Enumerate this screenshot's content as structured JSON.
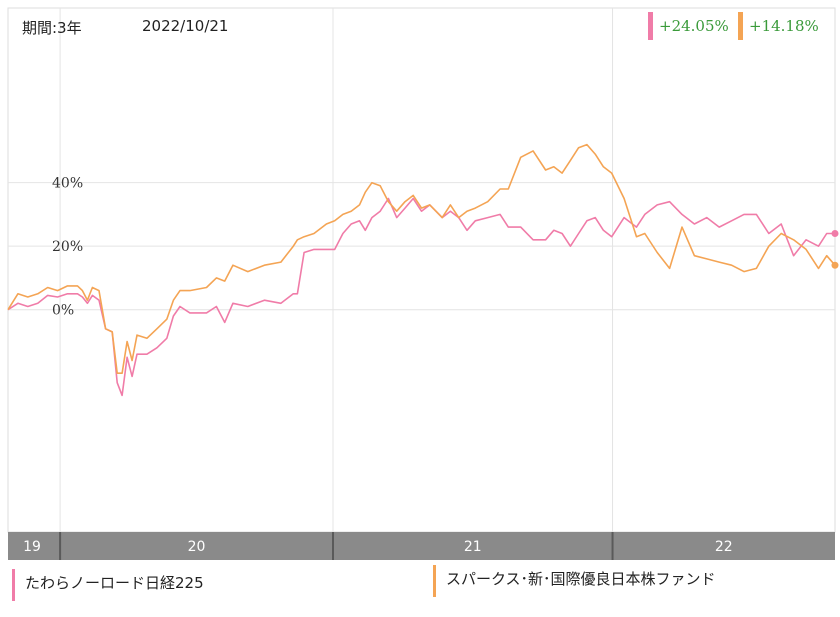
{
  "header": {
    "period_label": "期間:3年",
    "date": "2022/10/21"
  },
  "badges": [
    {
      "text": "+24.05%",
      "color": "#f07ca8"
    },
    {
      "text": "+14.18%",
      "color": "#f4a454"
    }
  ],
  "legend": [
    {
      "label": "たわらノーロード日経225",
      "color": "#f07ca8"
    },
    {
      "label": "スパークス･新･国際優良日本株ファンド",
      "color": "#f4a454"
    }
  ],
  "chart_data": {
    "type": "line",
    "ylim": [
      -0.7,
      0.95
    ],
    "y_ticks": [
      {
        "value": 0.4,
        "label": "40%"
      },
      {
        "value": 0.2,
        "label": "20%"
      },
      {
        "value": 0.0,
        "label": "0%"
      }
    ],
    "x_bands": [
      {
        "label": "19",
        "from": 0.0,
        "to": 0.063
      },
      {
        "label": "20",
        "from": 0.063,
        "to": 0.393
      },
      {
        "label": "21",
        "from": 0.393,
        "to": 0.731
      },
      {
        "label": "22",
        "from": 0.731,
        "to": 1.0
      }
    ],
    "series": [
      {
        "name": "たわらノーロード日経225",
        "color": "#f07ca8",
        "points": [
          [
            0,
            0
          ],
          [
            0.012,
            0.02
          ],
          [
            0.024,
            0.01
          ],
          [
            0.036,
            0.02
          ],
          [
            0.048,
            0.045
          ],
          [
            0.06,
            0.04
          ],
          [
            0.072,
            0.05
          ],
          [
            0.084,
            0.05
          ],
          [
            0.09,
            0.04
          ],
          [
            0.096,
            0.02
          ],
          [
            0.102,
            0.045
          ],
          [
            0.11,
            0.03
          ],
          [
            0.118,
            -0.06
          ],
          [
            0.126,
            -0.07
          ],
          [
            0.132,
            -0.23
          ],
          [
            0.138,
            -0.27
          ],
          [
            0.144,
            -0.15
          ],
          [
            0.15,
            -0.21
          ],
          [
            0.156,
            -0.14
          ],
          [
            0.168,
            -0.14
          ],
          [
            0.18,
            -0.12
          ],
          [
            0.192,
            -0.09
          ],
          [
            0.2,
            -0.02
          ],
          [
            0.208,
            0.01
          ],
          [
            0.22,
            -0.01
          ],
          [
            0.24,
            -0.01
          ],
          [
            0.252,
            0.01
          ],
          [
            0.262,
            -0.04
          ],
          [
            0.272,
            0.02
          ],
          [
            0.29,
            0.01
          ],
          [
            0.31,
            0.03
          ],
          [
            0.33,
            0.02
          ],
          [
            0.345,
            0.05
          ],
          [
            0.35,
            0.05
          ],
          [
            0.358,
            0.18
          ],
          [
            0.37,
            0.19
          ],
          [
            0.385,
            0.19
          ],
          [
            0.395,
            0.19
          ],
          [
            0.405,
            0.24
          ],
          [
            0.415,
            0.27
          ],
          [
            0.425,
            0.28
          ],
          [
            0.432,
            0.25
          ],
          [
            0.44,
            0.29
          ],
          [
            0.45,
            0.31
          ],
          [
            0.46,
            0.35
          ],
          [
            0.47,
            0.29
          ],
          [
            0.48,
            0.32
          ],
          [
            0.49,
            0.35
          ],
          [
            0.5,
            0.31
          ],
          [
            0.51,
            0.33
          ],
          [
            0.525,
            0.29
          ],
          [
            0.535,
            0.31
          ],
          [
            0.545,
            0.29
          ],
          [
            0.555,
            0.25
          ],
          [
            0.565,
            0.28
          ],
          [
            0.58,
            0.29
          ],
          [
            0.595,
            0.3
          ],
          [
            0.605,
            0.26
          ],
          [
            0.62,
            0.26
          ],
          [
            0.635,
            0.22
          ],
          [
            0.65,
            0.22
          ],
          [
            0.66,
            0.25
          ],
          [
            0.67,
            0.24
          ],
          [
            0.68,
            0.2
          ],
          [
            0.69,
            0.24
          ],
          [
            0.7,
            0.28
          ],
          [
            0.71,
            0.29
          ],
          [
            0.72,
            0.25
          ],
          [
            0.73,
            0.23
          ],
          [
            0.745,
            0.29
          ],
          [
            0.76,
            0.26
          ],
          [
            0.77,
            0.3
          ],
          [
            0.785,
            0.33
          ],
          [
            0.8,
            0.34
          ],
          [
            0.815,
            0.3
          ],
          [
            0.83,
            0.27
          ],
          [
            0.845,
            0.29
          ],
          [
            0.86,
            0.26
          ],
          [
            0.875,
            0.28
          ],
          [
            0.89,
            0.3
          ],
          [
            0.905,
            0.3
          ],
          [
            0.92,
            0.24
          ],
          [
            0.935,
            0.27
          ],
          [
            0.95,
            0.17
          ],
          [
            0.965,
            0.22
          ],
          [
            0.98,
            0.2
          ],
          [
            0.99,
            0.24
          ],
          [
            1.0,
            0.24
          ]
        ]
      },
      {
        "name": "スパークス･新･国際優良日本株ファンド",
        "color": "#f4a454",
        "points": [
          [
            0,
            0
          ],
          [
            0.012,
            0.05
          ],
          [
            0.024,
            0.04
          ],
          [
            0.036,
            0.05
          ],
          [
            0.048,
            0.07
          ],
          [
            0.06,
            0.06
          ],
          [
            0.072,
            0.075
          ],
          [
            0.084,
            0.075
          ],
          [
            0.09,
            0.06
          ],
          [
            0.096,
            0.03
          ],
          [
            0.102,
            0.07
          ],
          [
            0.11,
            0.06
          ],
          [
            0.118,
            -0.06
          ],
          [
            0.126,
            -0.07
          ],
          [
            0.132,
            -0.2
          ],
          [
            0.138,
            -0.2
          ],
          [
            0.144,
            -0.1
          ],
          [
            0.15,
            -0.16
          ],
          [
            0.156,
            -0.08
          ],
          [
            0.168,
            -0.09
          ],
          [
            0.18,
            -0.06
          ],
          [
            0.192,
            -0.03
          ],
          [
            0.2,
            0.03
          ],
          [
            0.208,
            0.06
          ],
          [
            0.22,
            0.06
          ],
          [
            0.24,
            0.07
          ],
          [
            0.252,
            0.1
          ],
          [
            0.262,
            0.09
          ],
          [
            0.272,
            0.14
          ],
          [
            0.29,
            0.12
          ],
          [
            0.31,
            0.14
          ],
          [
            0.33,
            0.15
          ],
          [
            0.345,
            0.2
          ],
          [
            0.35,
            0.22
          ],
          [
            0.358,
            0.23
          ],
          [
            0.37,
            0.24
          ],
          [
            0.385,
            0.27
          ],
          [
            0.395,
            0.28
          ],
          [
            0.405,
            0.3
          ],
          [
            0.415,
            0.31
          ],
          [
            0.425,
            0.33
          ],
          [
            0.432,
            0.37
          ],
          [
            0.44,
            0.4
          ],
          [
            0.45,
            0.39
          ],
          [
            0.46,
            0.34
          ],
          [
            0.47,
            0.31
          ],
          [
            0.48,
            0.34
          ],
          [
            0.49,
            0.36
          ],
          [
            0.5,
            0.32
          ],
          [
            0.51,
            0.33
          ],
          [
            0.525,
            0.29
          ],
          [
            0.535,
            0.33
          ],
          [
            0.545,
            0.29
          ],
          [
            0.555,
            0.31
          ],
          [
            0.565,
            0.32
          ],
          [
            0.58,
            0.34
          ],
          [
            0.595,
            0.38
          ],
          [
            0.605,
            0.38
          ],
          [
            0.62,
            0.48
          ],
          [
            0.635,
            0.5
          ],
          [
            0.65,
            0.44
          ],
          [
            0.66,
            0.45
          ],
          [
            0.67,
            0.43
          ],
          [
            0.68,
            0.47
          ],
          [
            0.69,
            0.51
          ],
          [
            0.7,
            0.52
          ],
          [
            0.71,
            0.49
          ],
          [
            0.72,
            0.45
          ],
          [
            0.73,
            0.43
          ],
          [
            0.745,
            0.35
          ],
          [
            0.76,
            0.23
          ],
          [
            0.77,
            0.24
          ],
          [
            0.785,
            0.18
          ],
          [
            0.8,
            0.13
          ],
          [
            0.815,
            0.26
          ],
          [
            0.83,
            0.17
          ],
          [
            0.845,
            0.16
          ],
          [
            0.86,
            0.15
          ],
          [
            0.875,
            0.14
          ],
          [
            0.89,
            0.12
          ],
          [
            0.905,
            0.13
          ],
          [
            0.92,
            0.2
          ],
          [
            0.935,
            0.24
          ],
          [
            0.95,
            0.22
          ],
          [
            0.965,
            0.19
          ],
          [
            0.98,
            0.13
          ],
          [
            0.99,
            0.17
          ],
          [
            1.0,
            0.14
          ]
        ]
      }
    ]
  }
}
